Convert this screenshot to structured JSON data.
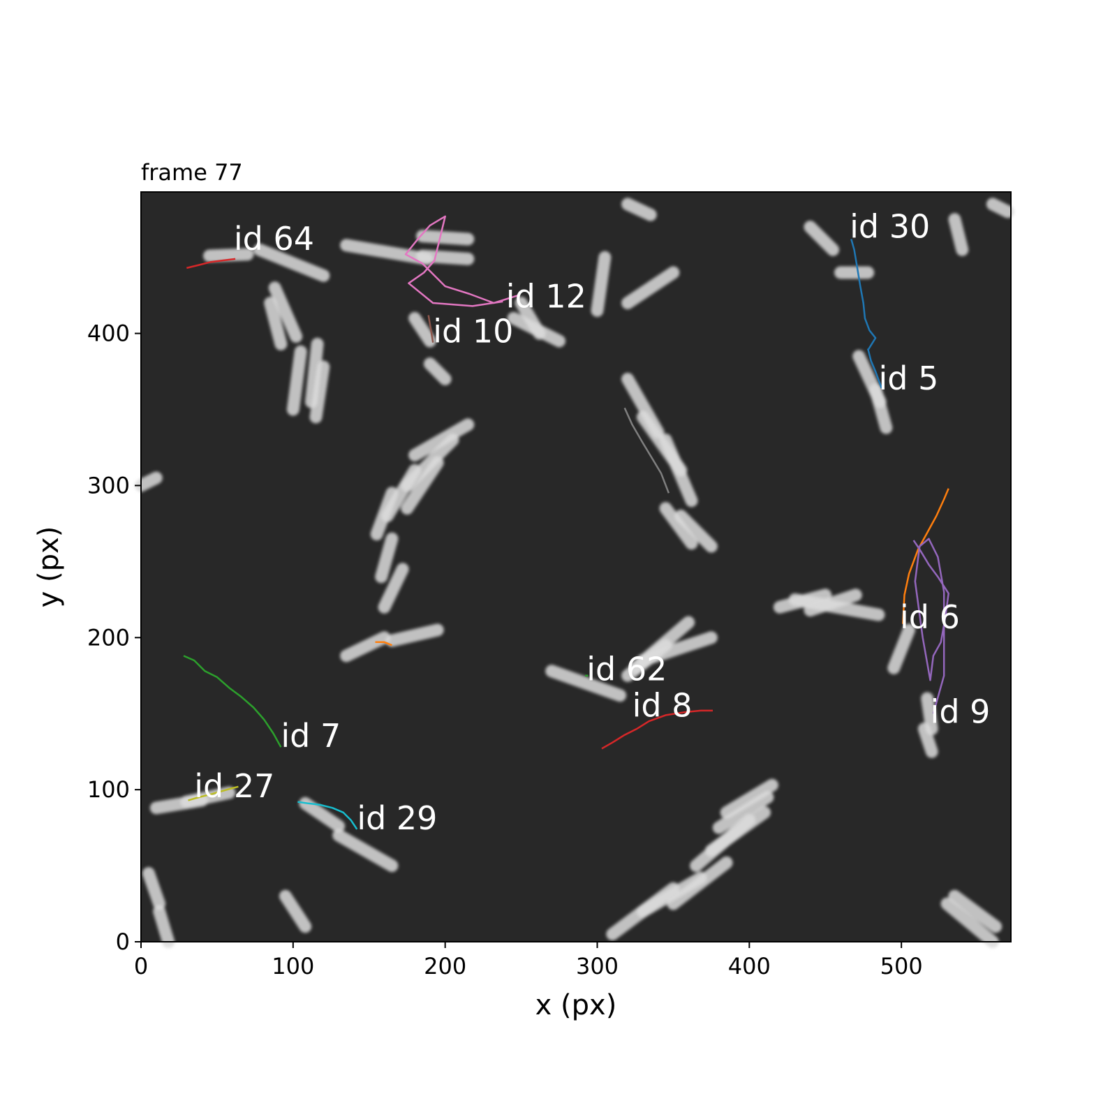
{
  "title": "frame 77",
  "colors": {
    "background": "#ffffff",
    "plot_background": "#282828",
    "cell": "#dcdcdc",
    "label": "#ffffff"
  },
  "chart_data": {
    "type": "scatter",
    "title": "frame 77",
    "xlabel": "x (px)",
    "ylabel": "y (px)",
    "xlim": [
      0,
      572
    ],
    "ylim": [
      0,
      493
    ],
    "x_ticks": [
      0,
      100,
      200,
      300,
      400,
      500
    ],
    "y_ticks": [
      0,
      100,
      200,
      300,
      400
    ],
    "grid": false,
    "legend": "none",
    "background": "grayscale microscopy image of rod-shaped cells",
    "tracks": [
      {
        "name": "id 64",
        "color": "#d62728",
        "label_at": [
          61,
          455
        ],
        "x": [
          30,
          38,
          46,
          54,
          62
        ],
        "y": [
          443,
          445,
          447,
          448,
          449
        ]
      },
      {
        "name": "id 12",
        "color": "#e377c2",
        "label_at": [
          240,
          417
        ],
        "x": [
          248,
          232,
          216,
          200,
          185,
          174,
          182,
          190,
          200,
          193,
          186,
          176,
          192,
          218,
          238
        ],
        "y": [
          425,
          420,
          426,
          431,
          446,
          452,
          462,
          471,
          477,
          448,
          440,
          433,
          420,
          418,
          421
        ]
      },
      {
        "name": "id 10",
        "color": "#8c564b",
        "label_at": [
          192,
          394
        ],
        "x": [
          189,
          190,
          191,
          192
        ],
        "y": [
          412,
          406,
          400,
          394
        ]
      },
      {
        "name": "id 30",
        "color": "#1f77b4",
        "label_at": [
          466,
          463
        ],
        "x": [
          467,
          469,
          471,
          473,
          475,
          476,
          479,
          483,
          478
        ],
        "y": [
          462,
          455,
          443,
          431,
          420,
          410,
          402,
          397,
          389
        ]
      },
      {
        "name": "id 5",
        "color": "#1f77b4",
        "label_at": [
          485,
          363
        ],
        "x": [
          478,
          480,
          483,
          487
        ],
        "y": [
          390,
          382,
          375,
          364
        ]
      },
      {
        "name": "id 6",
        "color": "#ff7f0e",
        "label_at": [
          499,
          206
        ],
        "x": [
          531,
          528,
          523,
          517,
          511,
          505,
          502,
          501
        ],
        "y": [
          298,
          291,
          280,
          269,
          258,
          242,
          228,
          209
        ]
      },
      {
        "name": "id 9",
        "color": "#9467bd",
        "label_at": [
          519,
          144
        ],
        "x": [
          508,
          512,
          518,
          524,
          531,
          529,
          526,
          521,
          519,
          514,
          509,
          512,
          518,
          524,
          528,
          528,
          528,
          521
        ],
        "y": [
          264,
          258,
          248,
          240,
          229,
          214,
          197,
          188,
          172,
          200,
          237,
          260,
          265,
          253,
          230,
          210,
          175,
          150
        ]
      },
      {
        "name": "id 62",
        "color": "#2ca02c",
        "label_at": [
          293,
          172
        ],
        "x": [
          292,
          294
        ],
        "y": [
          175,
          175
        ]
      },
      {
        "name": "id 8",
        "color": "#d62728",
        "label_at": [
          323,
          148
        ],
        "x": [
          303,
          310,
          318,
          326,
          334,
          345,
          358,
          368,
          376
        ],
        "y": [
          127,
          131,
          136,
          140,
          145,
          149,
          151,
          152,
          152
        ]
      },
      {
        "name": "id 7",
        "color": "#2ca02c",
        "label_at": [
          92,
          128
        ],
        "x": [
          28,
          35,
          42,
          50,
          58,
          66,
          74,
          81,
          87,
          92
        ],
        "y": [
          188,
          185,
          178,
          174,
          167,
          161,
          154,
          146,
          137,
          128
        ]
      },
      {
        "name": "id 27",
        "color": "#bcbd22",
        "label_at": [
          35,
          95
        ],
        "x": [
          31,
          38,
          46,
          53,
          60,
          64
        ],
        "y": [
          93,
          95,
          97,
          99,
          101,
          102
        ]
      },
      {
        "name": "id 29",
        "color": "#17becf",
        "label_at": [
          142,
          74
        ],
        "x": [
          103,
          110,
          118,
          126,
          133,
          138,
          142
        ],
        "y": [
          92,
          91,
          90,
          88,
          85,
          80,
          74
        ]
      },
      {
        "name": "",
        "color": "#ff7f0e",
        "label_at": null,
        "x": [
          154,
          160,
          165
        ],
        "y": [
          197,
          197,
          195
        ]
      },
      {
        "name": "",
        "color": "#7f7f7f",
        "label_at": null,
        "x": [
          318,
          323,
          330,
          336,
          342,
          347
        ],
        "y": [
          351,
          340,
          328,
          318,
          308,
          295
        ]
      }
    ]
  }
}
